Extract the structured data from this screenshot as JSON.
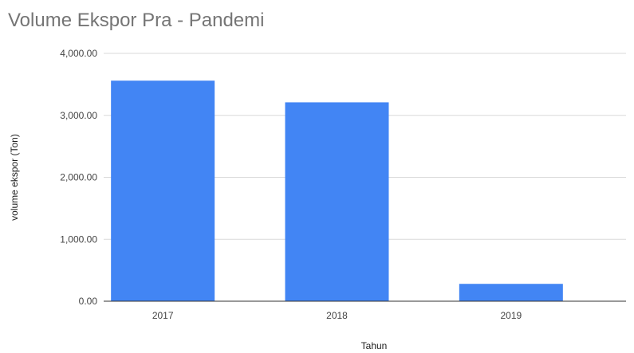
{
  "chart_data": {
    "type": "bar",
    "title": "Volume Ekspor Pra - Pandemi",
    "xlabel": "Tahun",
    "ylabel": "volume ekspor (Ton)",
    "categories": [
      "2017",
      "2018",
      "2019"
    ],
    "values": [
      3560,
      3210,
      280
    ],
    "ylim": [
      0,
      4000
    ],
    "yticks": [
      "0.00",
      "1,000.00",
      "2,000.00",
      "3,000.00",
      "4,000.00"
    ],
    "ytick_values": [
      0,
      1000,
      2000,
      3000,
      4000
    ],
    "grid": true,
    "legend": "none",
    "bar_color": "#4285f4"
  }
}
